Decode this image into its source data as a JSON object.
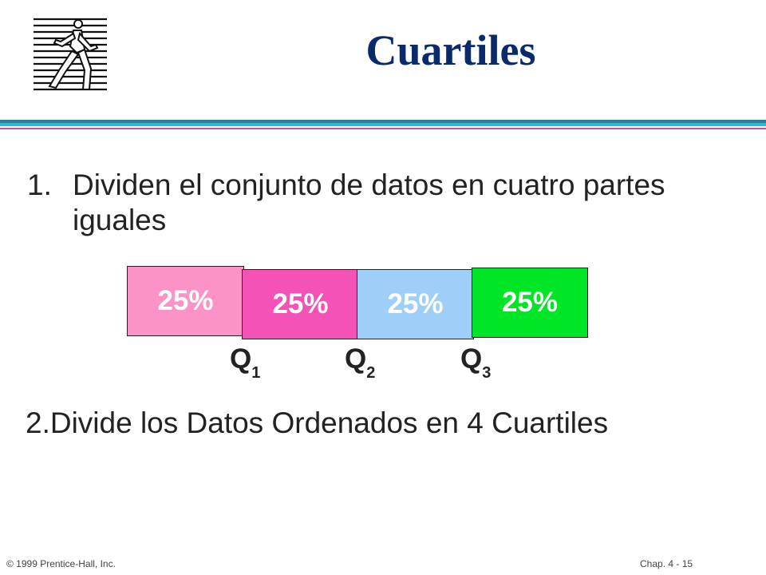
{
  "slide": {
    "title": "Cuartiles",
    "logo_icon": "running-man-logo-icon"
  },
  "points": [
    {
      "number": "1.",
      "text": "Dividen el conjunto de datos en cuatro partes iguales"
    },
    {
      "text": "2.Divide los Datos Ordenados en 4 Cuartiles"
    }
  ],
  "quartile_bar": {
    "segments": [
      {
        "label": "25%",
        "color": "#fb93c6"
      },
      {
        "label": "25%",
        "color": "#f552b8"
      },
      {
        "label": "25%",
        "color": "#9fcff8"
      },
      {
        "label": "25%",
        "color": "#00e626"
      }
    ],
    "markers": [
      {
        "letter": "Q",
        "index": "1"
      },
      {
        "letter": "Q",
        "index": "2"
      },
      {
        "letter": "Q",
        "index": "3"
      }
    ]
  },
  "footer": {
    "copyright": "© 1999 Prentice-Hall, Inc.",
    "page": "Chap. 4 - 15"
  }
}
